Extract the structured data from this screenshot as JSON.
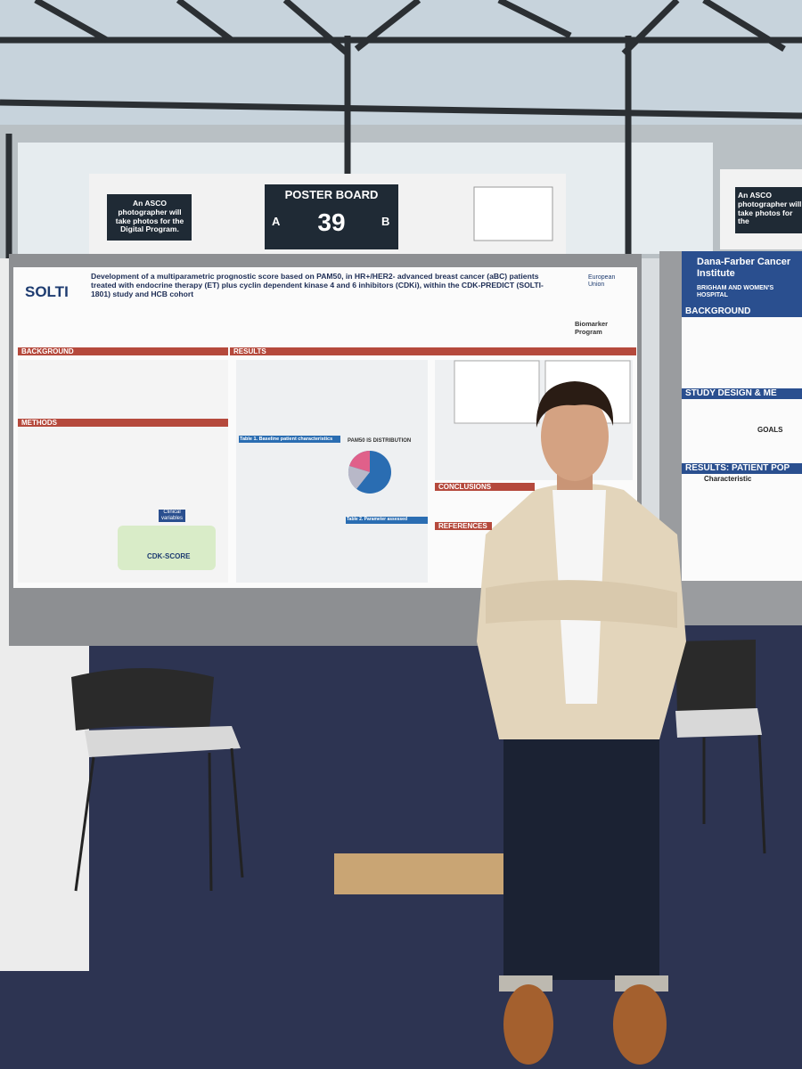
{
  "signs": {
    "left": "An ASCO photographer will take photos for the Digital Program.",
    "board_label": "POSTER BOARD",
    "board_left": "A",
    "board_number": "39",
    "board_right": "B",
    "right": "An ASCO photographer will take photos for the"
  },
  "poster": {
    "logo": "SOLTI",
    "title": "Development of a multiparametric prognostic score based on PAM50, in HR+/HER2- advanced breast cancer (aBC) patients treated with endocrine therapy (ET) plus cyclin dependent kinase 4 and 6 inhibitors (CDKi), within the CDK-PREDICT (SOLTI-1801) study and HCB cohort",
    "funder": "European Union",
    "program": "Biomarker Program",
    "sections": {
      "background": "BACKGROUND",
      "methods": "METHODS",
      "results": "RESULTS",
      "conclusions": "CONCLUSIONS",
      "references": "REFERENCES"
    },
    "table1": "Table 1. Baseline patient characteristics",
    "distribution": "PAM50 IS DISTRIBUTION",
    "table2": "Table 2. Parameter assessed",
    "score": "CDK-SCORE",
    "clinical": "Clinical variables"
  },
  "right_poster": {
    "institute": "Dana-Farber Cancer Institute",
    "hospital": "BRIGHAM AND WOMEN'S HOSPITAL",
    "background": "BACKGROUND",
    "design": "STUDY DESIGN & ME",
    "goals": "GOALS",
    "results": "RESULTS: PATIENT POP",
    "characteristic": "Characteristic"
  }
}
